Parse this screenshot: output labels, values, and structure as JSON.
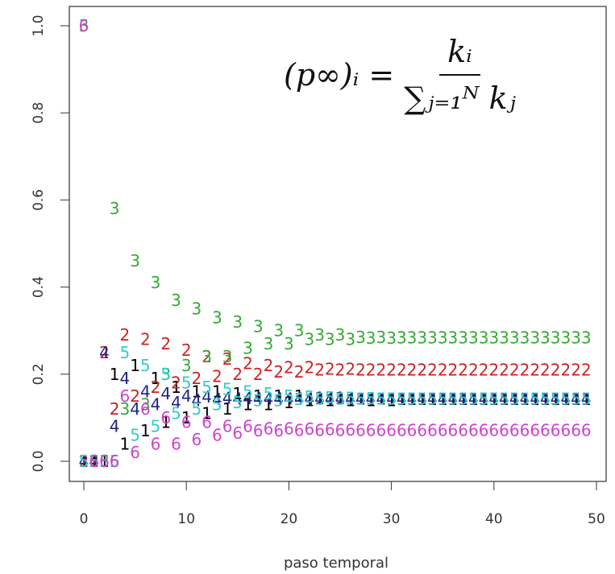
{
  "chart_data": {
    "type": "scatter",
    "title": "",
    "xlabel": "paso temporal",
    "ylabel": "",
    "xlim": [
      0,
      50
    ],
    "ylim": [
      0,
      1.0
    ],
    "x_ticks": [
      "0",
      "10",
      "20",
      "30",
      "40",
      "50"
    ],
    "y_ticks": [
      "0.0",
      "0.2",
      "0.4",
      "0.6",
      "0.8",
      "1.0"
    ],
    "grid": false,
    "annotation": {
      "lhs": "(p∞)ᵢ =",
      "numerator": "kᵢ",
      "denominator": "∑ⱼ₌₁ᴺ kⱼ"
    },
    "series": [
      {
        "marker": "1",
        "color": "#000000",
        "x": [
          0,
          1,
          2,
          3,
          4,
          5,
          6,
          7,
          8,
          9,
          10,
          11,
          12,
          13,
          14,
          15,
          16,
          17,
          18,
          19,
          20,
          21,
          22,
          23,
          24,
          25,
          26,
          27,
          28,
          29,
          30,
          31,
          32,
          33,
          34,
          35,
          36,
          37,
          38,
          39,
          40,
          41,
          42,
          43,
          44,
          45,
          46,
          47,
          48,
          49
        ],
        "y": [
          0,
          0,
          0,
          0.2,
          0.04,
          0.22,
          0.07,
          0.19,
          0.09,
          0.17,
          0.1,
          0.16,
          0.11,
          0.16,
          0.12,
          0.155,
          0.13,
          0.15,
          0.13,
          0.15,
          0.135,
          0.15,
          0.14,
          0.145,
          0.14,
          0.145,
          0.14,
          0.143,
          0.14,
          0.143,
          0.14,
          0.142,
          0.142,
          0.142,
          0.142,
          0.142,
          0.142,
          0.142,
          0.142,
          0.142,
          0.142,
          0.142,
          0.142,
          0.142,
          0.142,
          0.142,
          0.142,
          0.142,
          0.142,
          0.142
        ]
      },
      {
        "marker": "2",
        "color": "#cc2222",
        "x": [
          0,
          1,
          2,
          3,
          4,
          5,
          6,
          7,
          8,
          9,
          10,
          11,
          12,
          13,
          14,
          15,
          16,
          17,
          18,
          19,
          20,
          21,
          22,
          23,
          24,
          25,
          26,
          27,
          28,
          29,
          30,
          31,
          32,
          33,
          34,
          35,
          36,
          37,
          38,
          39,
          40,
          41,
          42,
          43,
          44,
          45,
          46,
          47,
          48,
          49
        ],
        "y": [
          0,
          0,
          0.25,
          0.12,
          0.29,
          0.15,
          0.28,
          0.17,
          0.27,
          0.18,
          0.255,
          0.19,
          0.24,
          0.195,
          0.235,
          0.2,
          0.225,
          0.2,
          0.22,
          0.205,
          0.215,
          0.205,
          0.215,
          0.21,
          0.212,
          0.21,
          0.212,
          0.21,
          0.21,
          0.21,
          0.21,
          0.21,
          0.21,
          0.21,
          0.21,
          0.21,
          0.21,
          0.21,
          0.21,
          0.21,
          0.21,
          0.21,
          0.21,
          0.21,
          0.21,
          0.21,
          0.21,
          0.21,
          0.21,
          0.21
        ]
      },
      {
        "marker": "3",
        "color": "#33aa33",
        "x": [
          0,
          1,
          2,
          3,
          4,
          5,
          6,
          7,
          8,
          9,
          10,
          11,
          12,
          13,
          14,
          15,
          16,
          17,
          18,
          19,
          20,
          21,
          22,
          23,
          24,
          25,
          26,
          27,
          28,
          29,
          30,
          31,
          32,
          33,
          34,
          35,
          36,
          37,
          38,
          39,
          40,
          41,
          42,
          43,
          44,
          45,
          46,
          47,
          48,
          49
        ],
        "y": [
          1.0,
          0,
          0,
          0.58,
          0.12,
          0.46,
          0.13,
          0.41,
          0.2,
          0.37,
          0.22,
          0.35,
          0.24,
          0.33,
          0.24,
          0.32,
          0.26,
          0.31,
          0.27,
          0.3,
          0.27,
          0.3,
          0.28,
          0.29,
          0.28,
          0.29,
          0.28,
          0.285,
          0.283,
          0.285,
          0.283,
          0.284,
          0.284,
          0.284,
          0.284,
          0.284,
          0.284,
          0.284,
          0.284,
          0.284,
          0.284,
          0.284,
          0.284,
          0.284,
          0.284,
          0.284,
          0.284,
          0.284,
          0.284,
          0.284
        ]
      },
      {
        "marker": "4",
        "color": "#222288",
        "x": [
          0,
          1,
          2,
          3,
          4,
          5,
          6,
          7,
          8,
          9,
          10,
          11,
          12,
          13,
          14,
          15,
          16,
          17,
          18,
          19,
          20,
          21,
          22,
          23,
          24,
          25,
          26,
          27,
          28,
          29,
          30,
          31,
          32,
          33,
          34,
          35,
          36,
          37,
          38,
          39,
          40,
          41,
          42,
          43,
          44,
          45,
          46,
          47,
          48,
          49
        ],
        "y": [
          0,
          0,
          0.25,
          0.08,
          0.19,
          0.12,
          0.16,
          0.13,
          0.155,
          0.135,
          0.15,
          0.14,
          0.148,
          0.142,
          0.145,
          0.143,
          0.144,
          0.143,
          0.143,
          0.143,
          0.143,
          0.143,
          0.143,
          0.143,
          0.143,
          0.143,
          0.143,
          0.143,
          0.143,
          0.143,
          0.143,
          0.143,
          0.143,
          0.143,
          0.143,
          0.143,
          0.143,
          0.143,
          0.143,
          0.143,
          0.143,
          0.143,
          0.143,
          0.143,
          0.143,
          0.143,
          0.143,
          0.143,
          0.143,
          0.143
        ]
      },
      {
        "marker": "5",
        "color": "#33cccc",
        "x": [
          0,
          1,
          2,
          3,
          4,
          5,
          6,
          7,
          8,
          9,
          10,
          11,
          12,
          13,
          14,
          15,
          16,
          17,
          18,
          19,
          20,
          21,
          22,
          23,
          24,
          25,
          26,
          27,
          28,
          29,
          30,
          31,
          32,
          33,
          34,
          35,
          36,
          37,
          38,
          39,
          40,
          41,
          42,
          43,
          44,
          45,
          46,
          47,
          48,
          49
        ],
        "y": [
          0,
          0,
          0,
          0,
          0.25,
          0.06,
          0.22,
          0.08,
          0.2,
          0.11,
          0.18,
          0.12,
          0.17,
          0.13,
          0.165,
          0.135,
          0.16,
          0.14,
          0.155,
          0.14,
          0.15,
          0.142,
          0.148,
          0.143,
          0.146,
          0.143,
          0.145,
          0.143,
          0.144,
          0.143,
          0.143,
          0.143,
          0.143,
          0.143,
          0.143,
          0.143,
          0.143,
          0.143,
          0.143,
          0.143,
          0.143,
          0.143,
          0.143,
          0.143,
          0.143,
          0.143,
          0.143,
          0.143,
          0.143,
          0.143
        ]
      },
      {
        "marker": "6",
        "color": "#cc44cc",
        "x": [
          0,
          1,
          2,
          3,
          4,
          5,
          6,
          7,
          8,
          9,
          10,
          11,
          12,
          13,
          14,
          15,
          16,
          17,
          18,
          19,
          20,
          21,
          22,
          23,
          24,
          25,
          26,
          27,
          28,
          29,
          30,
          31,
          32,
          33,
          34,
          35,
          36,
          37,
          38,
          39,
          40,
          41,
          42,
          43,
          44,
          45,
          46,
          47,
          48,
          49
        ],
        "y": [
          1.0,
          0,
          0,
          0,
          0.15,
          0.02,
          0.12,
          0.04,
          0.1,
          0.04,
          0.09,
          0.05,
          0.09,
          0.06,
          0.08,
          0.065,
          0.08,
          0.07,
          0.075,
          0.07,
          0.075,
          0.071,
          0.074,
          0.071,
          0.073,
          0.071,
          0.072,
          0.071,
          0.071,
          0.071,
          0.071,
          0.071,
          0.071,
          0.071,
          0.071,
          0.071,
          0.071,
          0.071,
          0.071,
          0.071,
          0.071,
          0.071,
          0.071,
          0.071,
          0.071,
          0.071,
          0.071,
          0.071,
          0.071,
          0.071
        ]
      }
    ]
  }
}
